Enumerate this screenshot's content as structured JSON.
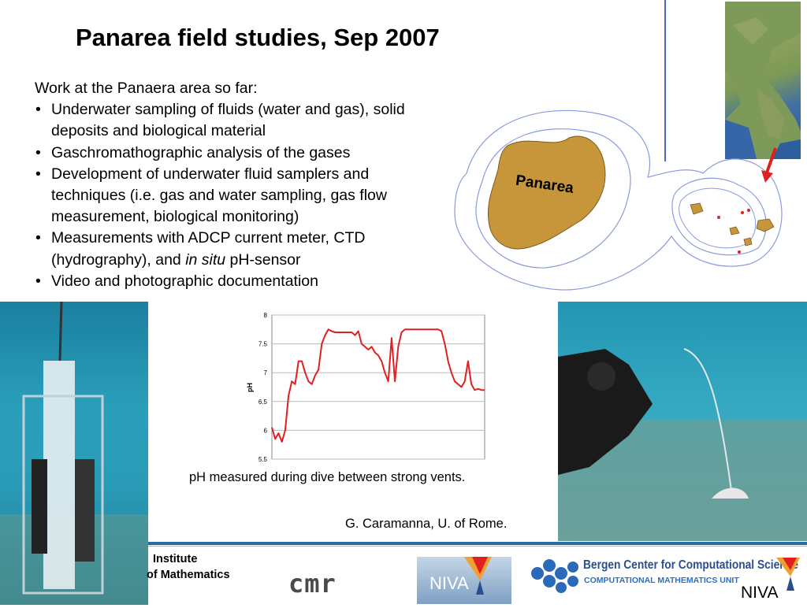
{
  "slide": {
    "title": "Panarea field studies, Sep 2007",
    "intro": "Work at the Panaera area so far:",
    "bullet_symbol": "•",
    "bullets": [
      "Underwater sampling of fluids (water and gas), solid deposits and biological material",
      "Gaschromathographic analysis of the gases",
      "Development of underwater fluid samplers and techniques (i.e. gas and water sampling, gas flow measurement, biological monitoring)"
    ],
    "bullet4": {
      "before": "Measurements with ADCP current meter, CTD (hydrography), and ",
      "italic": "in situ",
      "after": " pH-sensor"
    },
    "bullet5": "Video and photographic documentation"
  },
  "map": {
    "island_label": "Panarea",
    "colors": {
      "island": "#c8963a",
      "contour": "#8a9ae0",
      "arrow": "#e02020"
    }
  },
  "chart_caption": "pH measured during dive between strong vents.",
  "credit": "G. Caramanna, U. of Rome.",
  "footer": {
    "institute_line1": "Institute",
    "institute_line2": "of Mathematics",
    "cmr": "cmr",
    "niva": "NIVA",
    "bccs_title": "Bergen Center for Computational Science",
    "bccs_subtitle": "COMPUTATIONAL MATHEMATICS UNIT",
    "niva2": "NIVA",
    "colors": {
      "rule": "#2a6aa8"
    }
  },
  "chart_data": {
    "type": "line",
    "title": "",
    "xlabel": "",
    "ylabel": "pH",
    "ylim": [
      5.5,
      8
    ],
    "yticks": [
      "8",
      "7.5",
      "7",
      "6.5",
      "6",
      "5.5"
    ],
    "grid": true,
    "series": [
      {
        "color": "#e02020",
        "x": [
          0,
          1,
          2,
          3,
          4,
          5,
          6,
          7,
          8,
          9,
          10,
          11,
          12,
          13,
          14,
          15,
          16,
          17,
          18,
          19,
          20,
          21,
          22,
          23,
          24,
          25,
          26,
          27,
          28,
          29,
          30,
          31,
          32,
          33,
          34,
          35,
          36,
          37,
          38,
          39,
          40,
          41,
          42,
          43,
          44,
          45,
          46,
          47,
          48,
          49,
          50,
          51,
          52,
          53,
          54,
          55,
          56,
          57,
          58,
          59,
          60,
          61,
          62,
          63,
          64
        ],
        "y": [
          6.05,
          5.85,
          5.95,
          5.8,
          6.0,
          6.6,
          6.85,
          6.8,
          7.2,
          7.2,
          7.0,
          6.85,
          6.8,
          6.95,
          7.05,
          7.5,
          7.65,
          7.75,
          7.72,
          7.7,
          7.7,
          7.7,
          7.7,
          7.7,
          7.7,
          7.65,
          7.72,
          7.5,
          7.45,
          7.4,
          7.45,
          7.35,
          7.3,
          7.2,
          7.0,
          6.85,
          7.6,
          6.85,
          7.45,
          7.7,
          7.75,
          7.75,
          7.75,
          7.75,
          7.75,
          7.75,
          7.75,
          7.75,
          7.75,
          7.75,
          7.75,
          7.72,
          7.5,
          7.2,
          7.0,
          6.85,
          6.8,
          6.75,
          6.85,
          7.2,
          6.8,
          6.7,
          6.72,
          6.7,
          6.7
        ]
      }
    ]
  }
}
